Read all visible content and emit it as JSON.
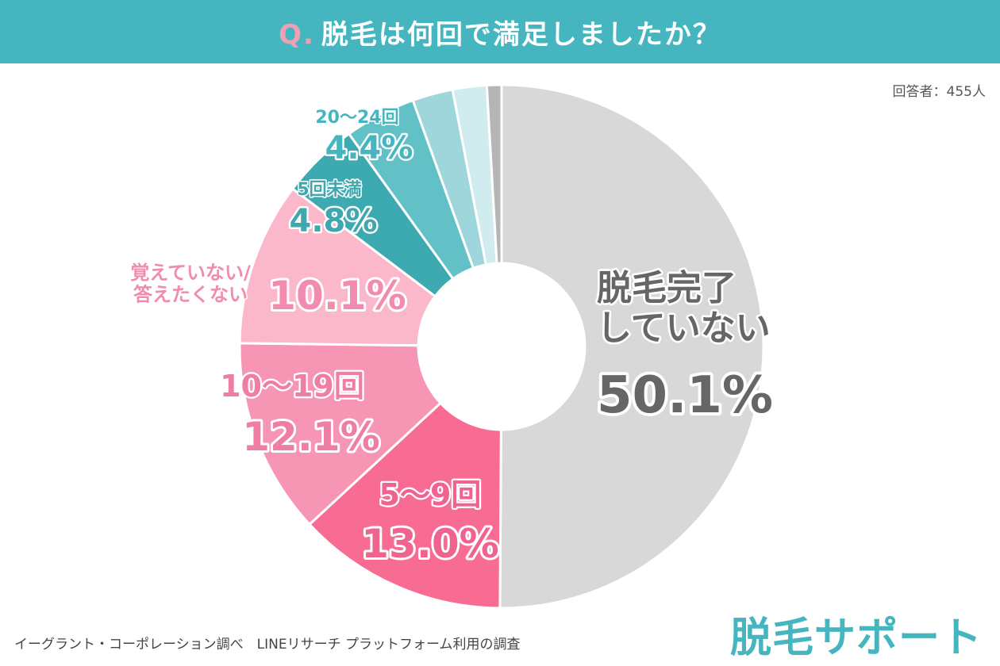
{
  "header": {
    "q_prefix": "Q.",
    "question": "脱毛は何回で満足しましたか？"
  },
  "respondents": "回答者：455人",
  "footnote": "イーグラント・コーポレーション調べ　LINEリサーチ プラットフォーム利用の調査",
  "logo_text": "脱毛サポート",
  "colors": {
    "banner": "#45b6bf",
    "pink_dark": "#f0628f",
    "pink_mid": "#ee7fa2",
    "pink_light": "#f18bb0",
    "teal_dark": "#3fa7ae",
    "teal_mid": "#45b6bf"
  },
  "chart_data": {
    "type": "pie",
    "donut": true,
    "start": "12 o'clock",
    "direction": "clockwise",
    "slices": [
      {
        "label": "脱毛完了\nしていない",
        "value": 50.1,
        "value_text": "50.1%",
        "color": "#d8d8d8"
      },
      {
        "label": "5〜9回",
        "value": 13.0,
        "value_text": "13.0%",
        "color": "#f86b93"
      },
      {
        "label": "10〜19回",
        "value": 12.1,
        "value_text": "12.1%",
        "color": "#f796b4"
      },
      {
        "label": "覚えていない/\n答えたくない",
        "value": 10.1,
        "value_text": "10.1%",
        "color": "#fbb8cb"
      },
      {
        "label": "5回未満",
        "value": 4.8,
        "value_text": "4.8%",
        "color": "#3da9b1"
      },
      {
        "label": "20〜24回",
        "value": 4.4,
        "value_text": "4.4%",
        "color": "#62c0c7"
      },
      {
        "label": "",
        "value": 2.5,
        "value_text": "",
        "color": "#9ed6dc"
      },
      {
        "label": "",
        "value": 2.1,
        "value_text": "",
        "color": "#d1ecef"
      },
      {
        "label": "",
        "value": 0.9,
        "value_text": "",
        "color": "#b5b5b5"
      }
    ]
  }
}
